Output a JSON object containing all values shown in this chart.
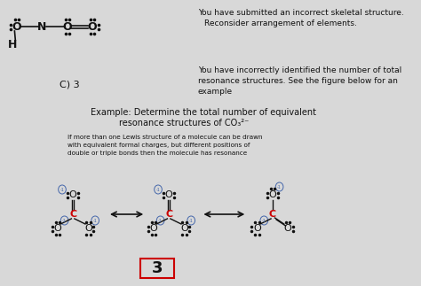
{
  "bg_color": "#d8d8d8",
  "title_text1": "You have submitted an incorrect skeletal structure.",
  "title_text2": "Reconsider arrangement of elements.",
  "feedback_text1": "You have incorrectly identified the number of total",
  "feedback_text2": "resonance structures. See the figure below for an",
  "feedback_text3": "example",
  "c3_label": "C) 3",
  "example_line1": "Example: Determine the total number of equivalent",
  "example_line2": "resonance structures of CO₃²⁻",
  "small_text1": "If more than one Lewis structure of a molecule can be drawn",
  "small_text2": "with equivalent formal charges, but different positions of",
  "small_text3": "double or triple bonds then the molecule has resonance",
  "answer": "3",
  "red_color": "#cc0000",
  "blue_color": "#4466aa",
  "text_color": "#111111"
}
